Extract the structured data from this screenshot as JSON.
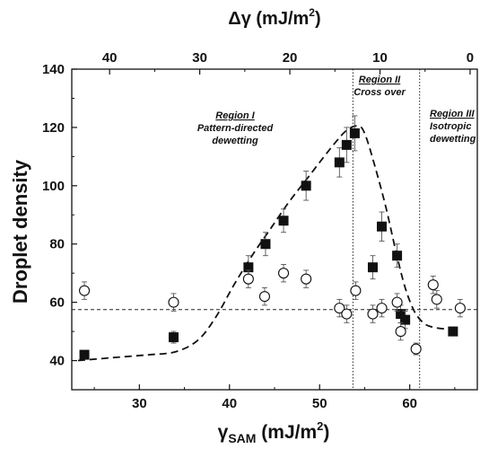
{
  "chart_data": {
    "type": "scatter",
    "xlabel": {
      "main": "γ",
      "sub": "SAM",
      "unit": " (mJ/m",
      "sup": "2",
      "close": ")"
    },
    "ylabel": "Droplet density",
    "x2label": {
      "main": "Δγ (mJ/m",
      "sup": "2",
      "close": ")"
    },
    "xlim": [
      22.5,
      67.5
    ],
    "ylim": [
      30,
      140
    ],
    "x2lim": [
      44.2,
      -0.8
    ],
    "xticks": [
      30,
      40,
      50,
      60
    ],
    "yticks": [
      40,
      60,
      80,
      100,
      120,
      140
    ],
    "x2ticks": [
      40,
      30,
      20,
      10,
      0
    ],
    "grid": false,
    "series": [
      {
        "marker": "filled-square",
        "points": [
          {
            "x": 23.9,
            "y": 42,
            "err": 1
          },
          {
            "x": 33.8,
            "y": 48,
            "err": 2
          },
          {
            "x": 42.1,
            "y": 72,
            "err": 4
          },
          {
            "x": 44.0,
            "y": 80,
            "err": 4
          },
          {
            "x": 46.0,
            "y": 88,
            "err": 4
          },
          {
            "x": 48.5,
            "y": 100,
            "err": 5
          },
          {
            "x": 52.2,
            "y": 108,
            "err": 5
          },
          {
            "x": 53.0,
            "y": 114,
            "err": 6
          },
          {
            "x": 53.9,
            "y": 118,
            "err": 6
          },
          {
            "x": 55.9,
            "y": 72,
            "err": 4
          },
          {
            "x": 56.9,
            "y": 86,
            "err": 5
          },
          {
            "x": 58.6,
            "y": 76,
            "err": 4
          },
          {
            "x": 59.0,
            "y": 56,
            "err": 3
          },
          {
            "x": 59.5,
            "y": 54,
            "err": 3
          },
          {
            "x": 64.8,
            "y": 50,
            "err": 1
          }
        ]
      },
      {
        "marker": "open-circle",
        "points": [
          {
            "x": 23.9,
            "y": 64,
            "err": 3
          },
          {
            "x": 33.8,
            "y": 60,
            "err": 3
          },
          {
            "x": 42.1,
            "y": 68,
            "err": 3
          },
          {
            "x": 43.9,
            "y": 62,
            "err": 3
          },
          {
            "x": 46.0,
            "y": 70,
            "err": 3
          },
          {
            "x": 48.5,
            "y": 68,
            "err": 3
          },
          {
            "x": 52.2,
            "y": 58,
            "err": 3
          },
          {
            "x": 53.0,
            "y": 56,
            "err": 3
          },
          {
            "x": 54.0,
            "y": 64,
            "err": 3
          },
          {
            "x": 55.9,
            "y": 56,
            "err": 3
          },
          {
            "x": 56.9,
            "y": 58,
            "err": 3
          },
          {
            "x": 58.6,
            "y": 60,
            "err": 3
          },
          {
            "x": 59.0,
            "y": 50,
            "err": 3
          },
          {
            "x": 60.7,
            "y": 44,
            "err": 2
          },
          {
            "x": 62.6,
            "y": 66,
            "err": 3
          },
          {
            "x": 63.0,
            "y": 61,
            "err": 3
          },
          {
            "x": 65.6,
            "y": 58,
            "err": 3
          }
        ]
      }
    ],
    "fit_curve": [
      [
        23.2,
        40
      ],
      [
        27,
        41
      ],
      [
        31,
        42
      ],
      [
        34,
        43
      ],
      [
        36.5,
        47
      ],
      [
        38.5,
        55
      ],
      [
        40.5,
        66
      ],
      [
        42.5,
        76
      ],
      [
        44.5,
        85
      ],
      [
        46.5,
        94
      ],
      [
        48.5,
        102
      ],
      [
        50.5,
        110
      ],
      [
        51.8,
        115
      ],
      [
        53,
        119
      ],
      [
        54.2,
        120.5
      ],
      [
        55,
        118
      ],
      [
        56.2,
        106
      ],
      [
        57.4,
        92
      ],
      [
        58.5,
        77
      ],
      [
        59.5,
        65
      ],
      [
        60.5,
        57
      ],
      [
        61.5,
        53
      ],
      [
        62.5,
        51.5
      ],
      [
        64,
        50.8
      ],
      [
        65.5,
        50.3
      ]
    ],
    "horizontal_line_y": 57.5,
    "vertical_lines_x": [
      53.7,
      61.1
    ],
    "regions": [
      {
        "id": "region-1",
        "title": "Region I",
        "desc": [
          "Pattern-directed",
          "dewetting"
        ]
      },
      {
        "id": "region-2",
        "title": "Region II",
        "desc": [
          "Cross over"
        ]
      },
      {
        "id": "region-3",
        "title": "Region III",
        "desc": [
          "Isotropic",
          "dewetting"
        ]
      }
    ]
  }
}
